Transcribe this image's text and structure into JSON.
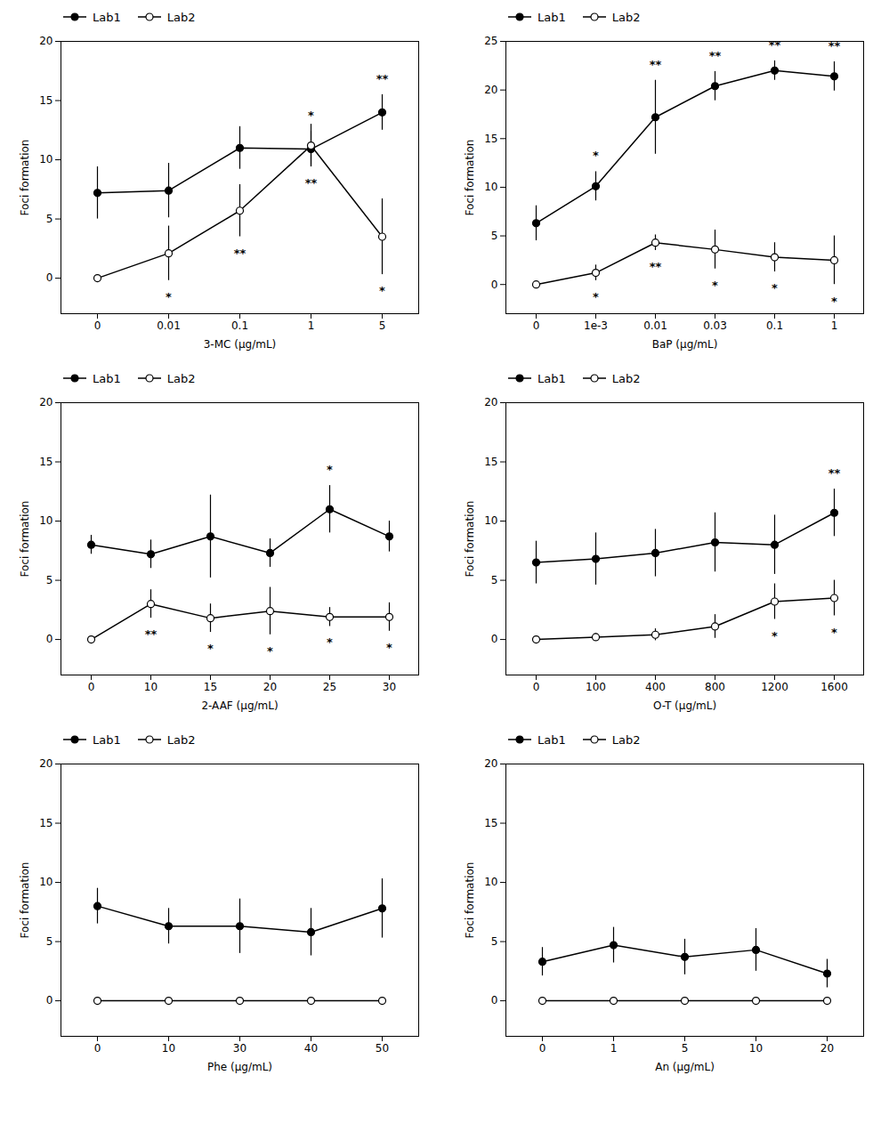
{
  "chart_data": [
    {
      "type": "line",
      "xlabel": "3-MC (μg/mL)",
      "ylabel": "Foci formation",
      "categories": [
        "0",
        "0.01",
        "0.1",
        "1",
        "5"
      ],
      "series": [
        {
          "name": "Lab1",
          "color": "#000000",
          "marker": "circle",
          "values": [
            7.2,
            7.4,
            11.0,
            10.9,
            14.0
          ],
          "errors": [
            2.2,
            2.3,
            1.8,
            1.5,
            1.5
          ]
        },
        {
          "name": "Lab2",
          "color": "#000000",
          "marker": "open_circle",
          "values": [
            0.0,
            2.1,
            5.7,
            11.2,
            3.5
          ],
          "errors": [
            0.0,
            2.3,
            2.2,
            1.8,
            3.2
          ]
        }
      ],
      "annotations": [
        {
          "x": "1",
          "series": "Lab1",
          "text": "*"
        },
        {
          "x": "5",
          "series": "Lab1",
          "text": "**"
        },
        {
          "x": "0.01",
          "series": "Lab2",
          "text": "*"
        },
        {
          "x": "0.1",
          "series": "Lab2",
          "text": "**"
        },
        {
          "x": "1",
          "series": "Lab2",
          "text": "**"
        },
        {
          "x": "5",
          "series": "Lab2",
          "text": "*"
        }
      ],
      "ylim": [
        -3,
        20
      ],
      "yticks": [
        0,
        5,
        10,
        15,
        20
      ],
      "legend": "upper left"
    },
    {
      "type": "line",
      "xlabel": "BaP (μg/mL)",
      "ylabel": "Foci formation",
      "categories": [
        "0",
        "1e-3",
        "0.01",
        "0.03",
        "0.1",
        "1"
      ],
      "series": [
        {
          "name": "Lab1",
          "color": "#000000",
          "marker": "circle",
          "values": [
            6.3,
            10.1,
            17.2,
            20.4,
            22.0,
            21.4
          ],
          "errors": [
            1.8,
            1.5,
            3.8,
            1.5,
            1.0,
            1.5
          ]
        },
        {
          "name": "Lab2",
          "color": "#000000",
          "marker": "open_circle",
          "values": [
            0.0,
            1.2,
            4.3,
            3.6,
            2.8,
            2.5
          ],
          "errors": [
            0.0,
            0.8,
            0.8,
            2.0,
            1.5,
            2.5
          ]
        }
      ],
      "annotations": [
        {
          "x": "1e-3",
          "series": "Lab1",
          "text": "*"
        },
        {
          "x": "0.01",
          "series": "Lab1",
          "text": "**"
        },
        {
          "x": "0.03",
          "series": "Lab1",
          "text": "**"
        },
        {
          "x": "0.1",
          "series": "Lab1",
          "text": "**"
        },
        {
          "x": "1",
          "series": "Lab1",
          "text": "**"
        },
        {
          "x": "1e-3",
          "series": "Lab2",
          "text": "*"
        },
        {
          "x": "0.01",
          "series": "Lab2",
          "text": "**"
        },
        {
          "x": "0.03",
          "series": "Lab2",
          "text": "*"
        },
        {
          "x": "0.1",
          "series": "Lab2",
          "text": "*"
        },
        {
          "x": "1",
          "series": "Lab2",
          "text": "*"
        }
      ],
      "ylim": [
        -3,
        25
      ],
      "yticks": [
        0,
        5,
        10,
        15,
        20,
        25
      ],
      "legend": "upper left"
    },
    {
      "type": "line",
      "xlabel": "2-AAF (μg/mL)",
      "ylabel": "Foci formation",
      "categories": [
        "0",
        "10",
        "15",
        "20",
        "25",
        "30"
      ],
      "series": [
        {
          "name": "Lab1",
          "color": "#000000",
          "marker": "circle",
          "values": [
            8.0,
            7.2,
            8.7,
            7.3,
            11.0,
            8.7
          ],
          "errors": [
            0.8,
            1.2,
            3.5,
            1.2,
            2.0,
            1.3
          ]
        },
        {
          "name": "Lab2",
          "color": "#000000",
          "marker": "open_circle",
          "values": [
            0.0,
            3.0,
            1.8,
            2.4,
            1.9,
            1.9
          ],
          "errors": [
            0.0,
            1.2,
            1.2,
            2.0,
            0.8,
            1.2
          ]
        }
      ],
      "annotations": [
        {
          "x": "25",
          "series": "Lab1",
          "text": "*"
        },
        {
          "x": "10",
          "series": "Lab2",
          "text": "**"
        },
        {
          "x": "15",
          "series": "Lab2",
          "text": "*"
        },
        {
          "x": "20",
          "series": "Lab2",
          "text": "*"
        },
        {
          "x": "25",
          "series": "Lab2",
          "text": "*"
        },
        {
          "x": "30",
          "series": "Lab2",
          "text": "*"
        }
      ],
      "ylim": [
        -3,
        20
      ],
      "yticks": [
        0,
        5,
        10,
        15,
        20
      ],
      "legend": "upper left"
    },
    {
      "type": "line",
      "xlabel": "O-T (μg/mL)",
      "ylabel": "Foci formation",
      "categories": [
        "0",
        "100",
        "400",
        "800",
        "1200",
        "1600"
      ],
      "series": [
        {
          "name": "Lab1",
          "color": "#000000",
          "marker": "circle",
          "values": [
            6.5,
            6.8,
            7.3,
            8.2,
            8.0,
            10.7
          ],
          "errors": [
            1.8,
            2.2,
            2.0,
            2.5,
            2.5,
            2.0
          ]
        },
        {
          "name": "Lab2",
          "color": "#000000",
          "marker": "open_circle",
          "values": [
            0.0,
            0.2,
            0.4,
            1.1,
            3.2,
            3.5
          ],
          "errors": [
            0.0,
            0.3,
            0.5,
            1.0,
            1.5,
            1.5
          ]
        }
      ],
      "annotations": [
        {
          "x": "1600",
          "series": "Lab1",
          "text": "**"
        },
        {
          "x": "1200",
          "series": "Lab2",
          "text": "*"
        },
        {
          "x": "1600",
          "series": "Lab2",
          "text": "*"
        }
      ],
      "ylim": [
        -3,
        20
      ],
      "yticks": [
        0,
        5,
        10,
        15,
        20
      ],
      "legend": "upper left"
    },
    {
      "type": "line",
      "xlabel": "Phe (μg/mL)",
      "ylabel": "Foci formation",
      "categories": [
        "0",
        "10",
        "30",
        "40",
        "50"
      ],
      "series": [
        {
          "name": "Lab1",
          "color": "#000000",
          "marker": "circle",
          "values": [
            8.0,
            6.3,
            6.3,
            5.8,
            7.8
          ],
          "errors": [
            1.5,
            1.5,
            2.3,
            2.0,
            2.5
          ]
        },
        {
          "name": "Lab2",
          "color": "#000000",
          "marker": "open_circle",
          "values": [
            0.0,
            0.0,
            0.0,
            0.0,
            0.0
          ],
          "errors": [
            0.2,
            0.2,
            0.2,
            0.2,
            0.2
          ]
        }
      ],
      "ylim": [
        -3,
        20
      ],
      "yticks": [
        0,
        5,
        10,
        15,
        20
      ],
      "legend": "upper left"
    },
    {
      "type": "line",
      "xlabel": "An (μg/mL)",
      "ylabel": "Foci formation",
      "categories": [
        "0",
        "1",
        "5",
        "10",
        "20"
      ],
      "series": [
        {
          "name": "Lab1",
          "color": "#000000",
          "marker": "circle",
          "values": [
            3.3,
            4.7,
            3.7,
            4.3,
            2.3
          ],
          "errors": [
            1.2,
            1.5,
            1.5,
            1.8,
            1.2
          ]
        },
        {
          "name": "Lab2",
          "color": "#000000",
          "marker": "open_circle",
          "values": [
            0.0,
            0.0,
            0.0,
            0.0,
            0.0
          ],
          "errors": [
            0.2,
            0.2,
            0.2,
            0.2,
            0.2
          ]
        }
      ],
      "ylim": [
        -3,
        20
      ],
      "yticks": [
        0,
        5,
        10,
        15,
        20
      ],
      "legend": "upper left"
    }
  ]
}
